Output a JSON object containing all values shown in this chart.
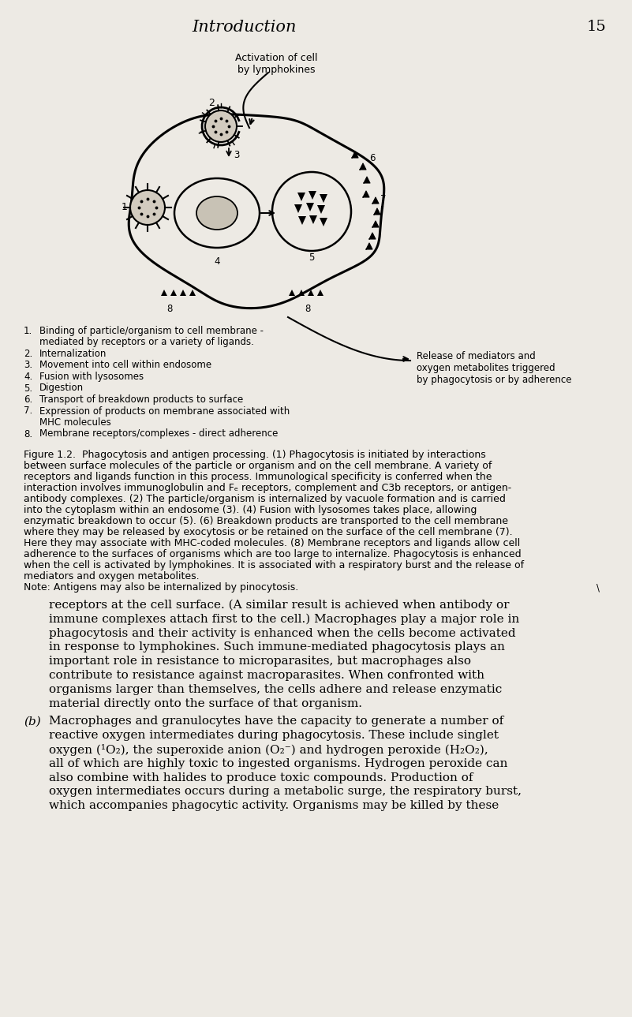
{
  "bg_color": "#edeae4",
  "header_title": "Introduction",
  "header_page": "15",
  "activation_label": "Activation of cell\nby lymphokines",
  "release_label": "Release of mediators and\noxygen metabolites triggered\nby phagocytosis or by adherence",
  "list_items": [
    [
      "1.",
      "Binding of particle/organism to cell membrane -",
      "mediated by receptors or a variety of ligands."
    ],
    [
      "2.",
      "Internalization",
      ""
    ],
    [
      "3.",
      "Movement into cell within endosome",
      ""
    ],
    [
      "4.",
      "Fusion with lysosomes",
      ""
    ],
    [
      "5.",
      "Digestion",
      ""
    ],
    [
      "6.",
      "Transport of breakdown products to surface",
      ""
    ],
    [
      "7.",
      "Expression of products on membrane associated with",
      "MHC molecules"
    ],
    [
      "8.",
      "Membrane receptors/complexes - direct adherence",
      ""
    ]
  ],
  "figure_caption_lines": [
    "Figure 1.2.  Phagocytosis and antigen processing. (1) Phagocytosis is initiated by interactions",
    "between surface molecules of the particle or organism and on the cell membrane. A variety of",
    "receptors and ligands function in this process. Immunological specificity is conferred when the",
    "interaction involves immunoglobulin and Fₑ receptors, complement and C3b receptors, or antigen-",
    "antibody complexes. (2) The particle/organism is internalized by vacuole formation and is carried",
    "into the cytoplasm within an endosome (3). (4) Fusion with lysosomes takes place, allowing",
    "enzymatic breakdown to occur (5). (6) Breakdown products are transported to the cell membrane",
    "where they may be released by exocytosis or be retained on the surface of the cell membrane (7).",
    "Here they may associate with MHC-coded molecules. (8) Membrane receptors and ligands allow cell",
    "adherence to the surfaces of organisms which are too large to internalize. Phagocytosis is enhanced",
    "when the cell is activated by lymphokines. It is associated with a respiratory burst and the release of",
    "mediators and oxygen metabolites.",
    "Note: Antigens may also be internalized by pinocytosis."
  ],
  "body_indent_lines": [
    "receptors at the cell surface. (A similar result is achieved when antibody or",
    "immune complexes attach first to the cell.) Macrophages play a major role in",
    "phagocytosis and their activity is enhanced when the cells become activated",
    "in response to lymphokines. Such immune-mediated phagocytosis plays an",
    "important role in resistance to microparasites, but macrophages also",
    "contribute to resistance against macroparasites. When confronted with",
    "organisms larger than themselves, the cells adhere and release enzymatic",
    "material directly onto the surface of that organism."
  ],
  "b_label": "(b)",
  "b_text_lines": [
    "Macrophages and granulocytes have the capacity to generate a number of",
    "reactive oxygen intermediates during phagocytosis. These include singlet",
    "oxygen (¹O₂), the superoxide anion (O₂⁻) and hydrogen peroxide (H₂O₂),",
    "all of which are highly toxic to ingested organisms. Hydrogen peroxide can",
    "also combine with halides to produce toxic compounds. Production of",
    "oxygen intermediates occurs during a metabolic surge, the respiratory burst,",
    "which accompanies phagocytic activity. Organisms may be killed by these"
  ]
}
